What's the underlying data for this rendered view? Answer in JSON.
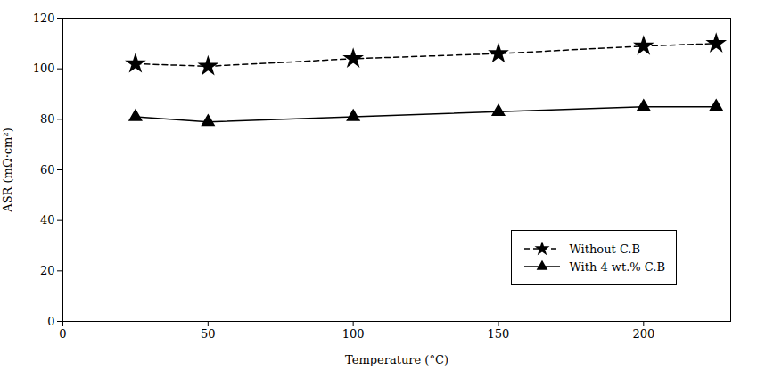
{
  "chart_data": {
    "type": "line",
    "x": [
      25,
      50,
      100,
      150,
      200,
      225
    ],
    "series": [
      {
        "name": "Without C.B",
        "color": "#000000",
        "values": [
          102,
          101,
          104,
          106,
          109,
          110
        ],
        "marker": "star",
        "line_style": "dashed"
      },
      {
        "name": "With 4 wt.% C.B",
        "color": "#000000",
        "values": [
          81,
          79,
          81,
          83,
          85,
          85
        ],
        "marker": "triangle",
        "line_style": "solid"
      }
    ],
    "xlabel": "Temperature (°C)",
    "ylabel": "ASR (mΩ·cm²)",
    "xlim": [
      0,
      230
    ],
    "ylim": [
      0,
      120
    ],
    "xticks": [
      0,
      50,
      100,
      150,
      200
    ],
    "yticks": [
      0,
      20,
      40,
      60,
      80,
      100,
      120
    ],
    "legend": "lower right",
    "grid": false
  }
}
